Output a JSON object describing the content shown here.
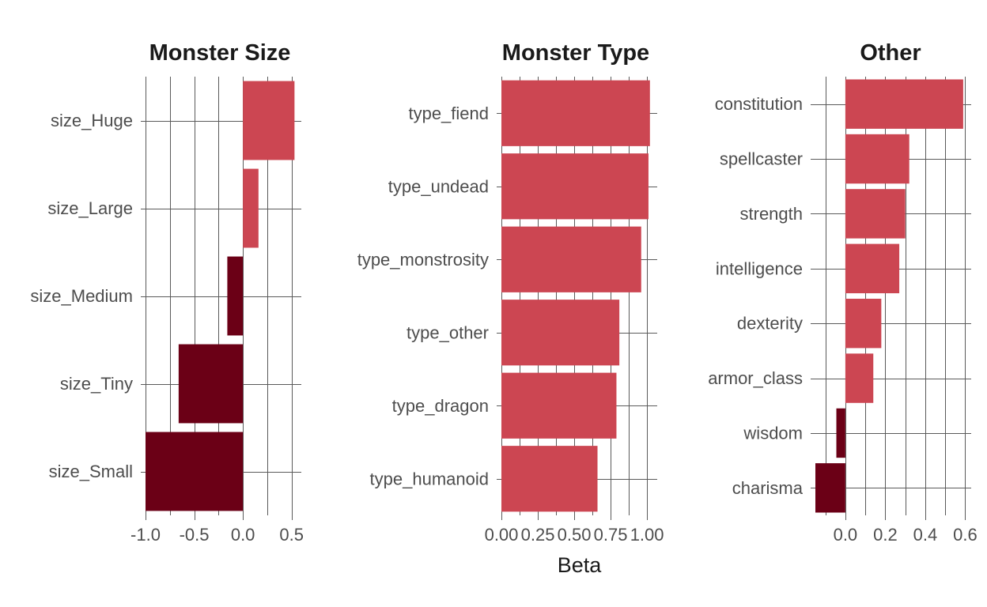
{
  "colors": {
    "positive": "#cc4652",
    "negative": "#6b0016",
    "grid": "#5a5a5a"
  },
  "chart_data": [
    {
      "type": "bar",
      "orientation": "horizontal",
      "title": "Monster Size",
      "xlabel": "",
      "categories": [
        "size_Huge",
        "size_Large",
        "size_Medium",
        "size_Tiny",
        "size_Small"
      ],
      "values": [
        0.53,
        0.16,
        -0.16,
        -0.66,
        -1.0
      ],
      "xlim": [
        -1.0,
        0.6
      ],
      "xticks": [
        -1.0,
        -0.5,
        0.0,
        0.5
      ],
      "xtick_labels": [
        "-1.0",
        "-0.5",
        "0.0",
        "0.5"
      ],
      "grid": true
    },
    {
      "type": "bar",
      "orientation": "horizontal",
      "title": "Monster Type",
      "xlabel": "Beta",
      "categories": [
        "type_fiend",
        "type_undead",
        "type_monstrosity",
        "type_other",
        "type_dragon",
        "type_humanoid"
      ],
      "values": [
        1.02,
        1.01,
        0.96,
        0.81,
        0.79,
        0.66
      ],
      "xlim": [
        0.0,
        1.07
      ],
      "xticks": [
        0.0,
        0.25,
        0.5,
        0.75,
        1.0
      ],
      "xtick_labels": [
        "0.00",
        "0.25",
        "0.50",
        "0.75",
        "1.00"
      ],
      "grid": true
    },
    {
      "type": "bar",
      "orientation": "horizontal",
      "title": "Other",
      "xlabel": "",
      "categories": [
        "constitution",
        "spellcaster",
        "strength",
        "intelligence",
        "dexterity",
        "armor_class",
        "wisdom",
        "charisma"
      ],
      "values": [
        0.59,
        0.32,
        0.3,
        0.27,
        0.18,
        0.14,
        -0.045,
        -0.15
      ],
      "xlim": [
        -0.15,
        0.63
      ],
      "xticks": [
        0.0,
        0.2,
        0.4,
        0.6
      ],
      "xtick_labels": [
        "0.0",
        "0.2",
        "0.4",
        "0.6"
      ],
      "grid": true
    }
  ]
}
